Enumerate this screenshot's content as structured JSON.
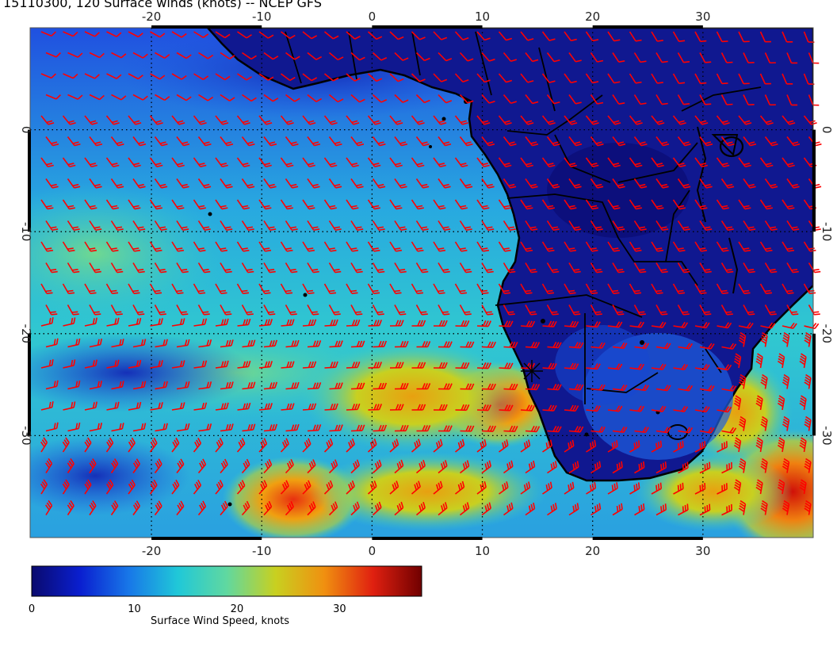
{
  "title": "15110300, 120 Surface winds (knots) -- NCEP GFS",
  "map": {
    "lon_range": [
      -31,
      40
    ],
    "lat_range": [
      -40,
      10
    ],
    "lon_ticks": [
      "-20",
      "-10",
      "0",
      "10",
      "20",
      "30"
    ],
    "lat_ticks": [
      "0",
      "-10",
      "-20",
      "-30"
    ],
    "barb_color": "#ff0000",
    "coast_color": "#000000",
    "marker": "asterisk"
  },
  "colorbar": {
    "label": "Surface Wind Speed, knots",
    "ticks": [
      "0",
      "10",
      "20",
      "30"
    ],
    "range": [
      0,
      38
    ],
    "colors": [
      "#0a0a6e",
      "#0a1fd0",
      "#1878e8",
      "#20c8d8",
      "#60d8a0",
      "#c8d020",
      "#f09010",
      "#e02010",
      "#700000"
    ]
  }
}
